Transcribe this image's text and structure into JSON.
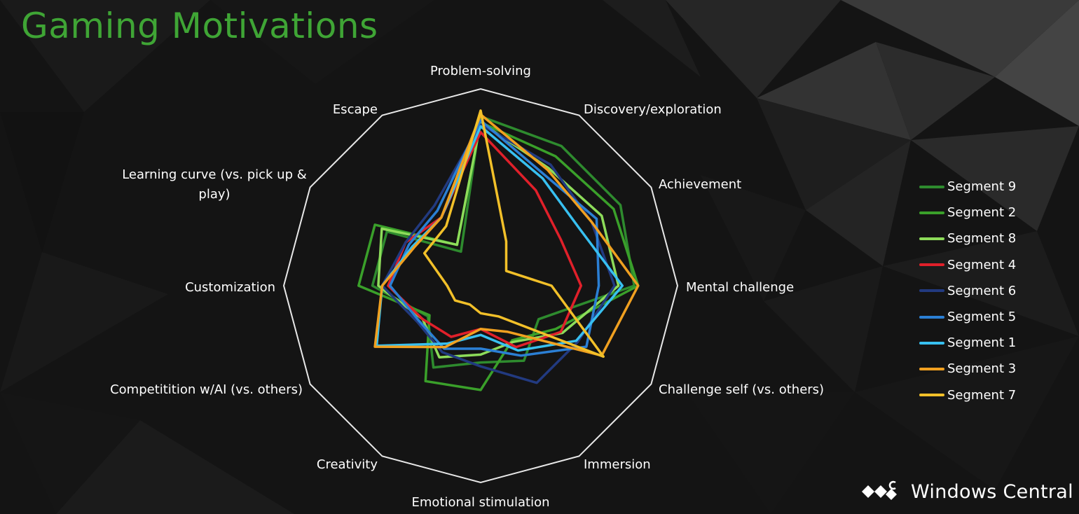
{
  "title": "Gaming Motivations",
  "watermark": {
    "text": "Windows Central",
    "icon": "windows-central-logo"
  },
  "chart_data": {
    "type": "radar",
    "title": "Gaming Motivations",
    "rmax": 1,
    "grid": false,
    "legend_position": "right",
    "axes": [
      {
        "label": "Problem-solving"
      },
      {
        "label": "Discovery/exploration"
      },
      {
        "label": "Achievement"
      },
      {
        "label": "Mental challenge"
      },
      {
        "label": "Challenge self (vs. others)"
      },
      {
        "label": "Immersion"
      },
      {
        "label": "Emotional stimulation"
      },
      {
        "label": "Creativity"
      },
      {
        "label": "Competitition w/AI (vs. others)"
      },
      {
        "label": "Customization"
      },
      {
        "label": "Learning curve (vs. pick up &",
        "label2": "play)"
      },
      {
        "label": "Escape"
      }
    ],
    "series": [
      {
        "name": "Segment 9",
        "color": "#2e8b2e",
        "values": [
          0.86,
          0.82,
          0.82,
          0.78,
          0.34,
          0.44,
          0.39,
          0.48,
          0.31,
          0.55,
          0.55,
          0.2
        ]
      },
      {
        "name": "Segment 2",
        "color": "#3aa02a",
        "values": [
          0.83,
          0.76,
          0.78,
          0.8,
          0.44,
          0.32,
          0.53,
          0.56,
          0.3,
          0.62,
          0.62,
          0.24
        ]
      },
      {
        "name": "Segment 8",
        "color": "#8ddc5a",
        "values": [
          0.83,
          0.69,
          0.71,
          0.7,
          0.48,
          0.33,
          0.35,
          0.42,
          0.34,
          0.52,
          0.58,
          0.24
        ]
      },
      {
        "name": "Segment 4",
        "color": "#e0202a",
        "values": [
          0.78,
          0.56,
          0.47,
          0.51,
          0.47,
          0.36,
          0.22,
          0.3,
          0.34,
          0.47,
          0.44,
          0.4
        ]
      },
      {
        "name": "Segment 6",
        "color": "#223a80",
        "values": [
          0.82,
          0.71,
          0.65,
          0.68,
          0.57,
          0.57,
          0.41,
          0.39,
          0.37,
          0.5,
          0.44,
          0.47
        ]
      },
      {
        "name": "Segment 5",
        "color": "#2b7fd4",
        "values": [
          0.84,
          0.65,
          0.68,
          0.6,
          0.62,
          0.41,
          0.32,
          0.37,
          0.36,
          0.46,
          0.42,
          0.44
        ]
      },
      {
        "name": "Segment 1",
        "color": "#38c0f0",
        "values": [
          0.81,
          0.63,
          0.58,
          0.72,
          0.56,
          0.38,
          0.25,
          0.34,
          0.61,
          0.5,
          0.4,
          0.4
        ]
      },
      {
        "name": "Segment 3",
        "color": "#f0a020",
        "values": [
          0.87,
          0.68,
          0.65,
          0.8,
          0.71,
          0.27,
          0.22,
          0.36,
          0.62,
          0.5,
          0.39,
          0.4
        ]
      },
      {
        "name": "Segment 7",
        "color": "#f2c029",
        "values": [
          0.89,
          0.26,
          0.15,
          0.36,
          0.72,
          0.18,
          0.14,
          0.11,
          0.15,
          0.17,
          0.33,
          0.35
        ]
      }
    ]
  }
}
